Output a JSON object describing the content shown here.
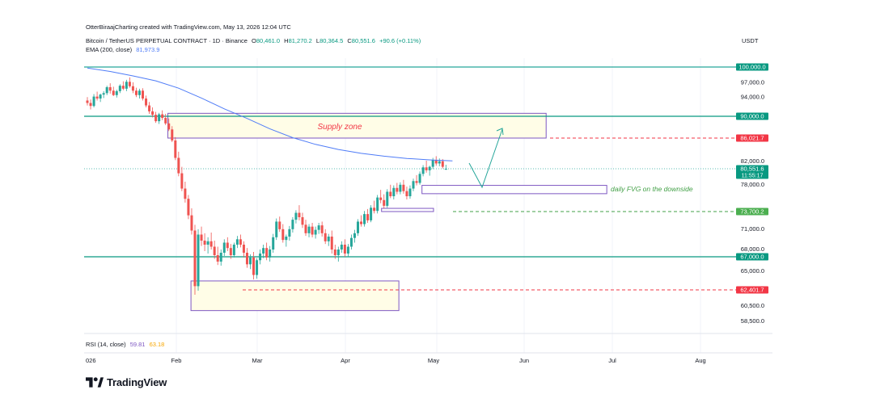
{
  "credit": "OtterBiraajCharting created with TradingView.com, May 13, 2026 12:04 UTC",
  "symbol": {
    "name": "Bitcoin / TetherUS PERPETUAL CONTRACT · 1D · Binance",
    "o_label": "O",
    "o": "80,461.0",
    "h_label": "H",
    "h": "81,270.2",
    "l_label": "L",
    "l": "80,364.5",
    "c_label": "C",
    "c": "80,551.6",
    "change": "+90.6 (+0.11%)"
  },
  "currency": "USDT",
  "ema": {
    "label": "EMA (200, close)",
    "value": "81,973.9",
    "color": "#4f7cf7"
  },
  "rsi": {
    "label": "RSI (14, close)",
    "value1": "59.81",
    "value2": "63.18"
  },
  "logo_text": "TradingView",
  "colors": {
    "up": "#26a69a",
    "down": "#ef5350",
    "teal": "#089981",
    "purple": "#7e57c2",
    "red": "#f23645",
    "green_text": "#43a047"
  },
  "chart_data": {
    "type": "candlestick",
    "timeframe": "1D",
    "y_axis_ticks": [
      97000,
      94000,
      82000,
      78000,
      71000,
      68000,
      65000,
      60500,
      58500
    ],
    "y_range": [
      55000,
      102500
    ],
    "x_axis_labels": [
      "026",
      "Feb",
      "Mar",
      "Apr",
      "May",
      "Jun",
      "Jul",
      "Aug"
    ],
    "price_labels": [
      {
        "value": "100,000.0",
        "price": 100000,
        "style": "teal"
      },
      {
        "value": "90,000.0",
        "price": 90000,
        "style": "teal"
      },
      {
        "value": "86,021.7",
        "price": 86021.7,
        "style": "red"
      },
      {
        "value": "80,551.6",
        "sub": "11:55:17",
        "price": 80551.6,
        "style": "teal"
      },
      {
        "value": "73,700.2",
        "price": 73700.2,
        "style": "green"
      },
      {
        "value": "67,000.0",
        "price": 67000,
        "style": "teal"
      },
      {
        "value": "62,401.7",
        "price": 62401.7,
        "style": "red"
      }
    ],
    "horizontal_lines": [
      {
        "price": 100000,
        "style": "solid",
        "color": "#26a69a"
      },
      {
        "price": 90000,
        "style": "solid",
        "color": "#089981"
      },
      {
        "price": 67000,
        "style": "solid",
        "color": "#089981"
      },
      {
        "price": 86021.7,
        "style": "dashed",
        "color": "#f23645"
      },
      {
        "price": 73700.2,
        "style": "dashed",
        "color": "#43a047"
      },
      {
        "price": 62401.7,
        "style": "dashed",
        "color": "#f23645"
      }
    ],
    "annotations": [
      {
        "text": "Supply zone",
        "color": "#f23645"
      },
      {
        "text": "daily FVG on the downside",
        "color": "#43a047"
      }
    ],
    "zones": [
      {
        "name": "Supply zone",
        "top": 90600,
        "bottom": 86021.7,
        "start": "2026-01-30",
        "end": "2026-06-10"
      },
      {
        "name": "daily FVG on the downside",
        "top": 77800,
        "bottom": 76500,
        "start": "2026-04-28",
        "end": "2026-07-01"
      },
      {
        "name": "FVG 2",
        "top": 74200,
        "bottom": 73700,
        "start": "2026-04-14",
        "end": "2026-05-02"
      },
      {
        "name": "Demand box",
        "top": 63600,
        "bottom": 59800,
        "start": "2026-02-07",
        "end": "2026-04-20"
      }
    ],
    "candles": [
      [
        93200,
        93900,
        92200,
        92700
      ],
      [
        92700,
        93400,
        91400,
        92100
      ],
      [
        92100,
        94500,
        91800,
        94000
      ],
      [
        94000,
        95000,
        93200,
        93600
      ],
      [
        93600,
        94600,
        92900,
        94400
      ],
      [
        94400,
        95100,
        93700,
        94700
      ],
      [
        94700,
        96200,
        94300,
        95900
      ],
      [
        95900,
        96700,
        94600,
        95200
      ],
      [
        95200,
        96000,
        94100,
        94300
      ],
      [
        94300,
        95400,
        93800,
        95100
      ],
      [
        95100,
        96500,
        94700,
        96200
      ],
      [
        96200,
        97100,
        95300,
        95600
      ],
      [
        95600,
        97400,
        95100,
        97000
      ],
      [
        97000,
        97900,
        95800,
        96100
      ],
      [
        96100,
        96900,
        94700,
        95200
      ],
      [
        95200,
        95800,
        93900,
        94300
      ],
      [
        94300,
        95600,
        93600,
        95200
      ],
      [
        95200,
        95700,
        93200,
        93600
      ],
      [
        93600,
        94200,
        91800,
        92200
      ],
      [
        92200,
        92900,
        90500,
        91000
      ],
      [
        91000,
        91800,
        89800,
        90300
      ],
      [
        90300,
        90900,
        88800,
        89100
      ],
      [
        89100,
        90700,
        88600,
        90400
      ],
      [
        90400,
        91200,
        89300,
        89700
      ],
      [
        89700,
        90500,
        88400,
        88700
      ],
      [
        88700,
        89600,
        87300,
        87600
      ],
      [
        87600,
        88200,
        85300,
        85600
      ],
      [
        85600,
        86200,
        82100,
        82500
      ],
      [
        82500,
        83600,
        79300,
        79800
      ],
      [
        79800,
        80900,
        76900,
        77300
      ],
      [
        77300,
        78400,
        75100,
        75700
      ],
      [
        75700,
        76300,
        72500,
        73100
      ],
      [
        73100,
        74200,
        70100,
        70700
      ],
      [
        70700,
        71600,
        61800,
        62900
      ],
      [
        62900,
        70900,
        62300,
        70100
      ],
      [
        70100,
        71300,
        68400,
        69200
      ],
      [
        69200,
        70300,
        67700,
        68600
      ],
      [
        68600,
        69700,
        67400,
        69100
      ],
      [
        69100,
        70400,
        67900,
        68300
      ],
      [
        68300,
        69200,
        66700,
        67200
      ],
      [
        67200,
        68300,
        65800,
        66300
      ],
      [
        66300,
        67900,
        65700,
        67500
      ],
      [
        67500,
        69400,
        67100,
        68900
      ],
      [
        68900,
        69700,
        67700,
        68100
      ],
      [
        68100,
        68700,
        66700,
        67200
      ],
      [
        67200,
        68900,
        66900,
        68600
      ],
      [
        68600,
        69900,
        68100,
        69400
      ],
      [
        69400,
        70100,
        68200,
        68600
      ],
      [
        68600,
        69100,
        66900,
        67500
      ],
      [
        67500,
        68100,
        65400,
        65900
      ],
      [
        65900,
        67300,
        65200,
        66900
      ],
      [
        66900,
        67600,
        63800,
        64400
      ],
      [
        64400,
        66800,
        63900,
        66500
      ],
      [
        66500,
        67900,
        65900,
        67400
      ],
      [
        67400,
        68600,
        66800,
        68100
      ],
      [
        68100,
        68900,
        66500,
        66900
      ],
      [
        66900,
        68400,
        66300,
        67900
      ],
      [
        67900,
        70200,
        67500,
        69700
      ],
      [
        69700,
        72600,
        69300,
        72100
      ],
      [
        72100,
        72900,
        70500,
        70900
      ],
      [
        70900,
        71700,
        68900,
        69300
      ],
      [
        69300,
        70100,
        68300,
        69800
      ],
      [
        69800,
        71400,
        69200,
        70900
      ],
      [
        70900,
        72800,
        70400,
        72400
      ],
      [
        72400,
        73900,
        71800,
        73500
      ],
      [
        73500,
        74700,
        72300,
        72800
      ],
      [
        72800,
        73500,
        71100,
        71600
      ],
      [
        71600,
        72400,
        69900,
        70300
      ],
      [
        70300,
        71700,
        69700,
        71300
      ],
      [
        71300,
        71900,
        69700,
        70100
      ],
      [
        70100,
        71300,
        69500,
        70800
      ],
      [
        70800,
        71900,
        70200,
        71500
      ],
      [
        71500,
        72100,
        69800,
        70300
      ],
      [
        70300,
        70900,
        68700,
        69100
      ],
      [
        69100,
        70200,
        68400,
        69800
      ],
      [
        69800,
        70700,
        67400,
        67900
      ],
      [
        67900,
        68600,
        66700,
        67200
      ],
      [
        67200,
        68300,
        66300,
        67900
      ],
      [
        67900,
        69100,
        67500,
        68600
      ],
      [
        68600,
        69400,
        67000,
        67400
      ],
      [
        67400,
        68700,
        67000,
        68300
      ],
      [
        68300,
        70100,
        67900,
        69600
      ],
      [
        69600,
        70800,
        68900,
        70300
      ],
      [
        70300,
        72500,
        69900,
        72100
      ],
      [
        72100,
        73100,
        71300,
        71700
      ],
      [
        71700,
        73800,
        71300,
        73300
      ],
      [
        73300,
        74100,
        71900,
        72300
      ],
      [
        72300,
        74700,
        72000,
        74300
      ],
      [
        74300,
        75400,
        73400,
        73800
      ],
      [
        73800,
        76300,
        73400,
        75900
      ],
      [
        75900,
        77100,
        75000,
        75500
      ],
      [
        75500,
        76400,
        74200,
        74600
      ],
      [
        74600,
        77200,
        74300,
        76800
      ],
      [
        76800,
        77900,
        75800,
        76100
      ],
      [
        76100,
        77800,
        75600,
        77400
      ],
      [
        77400,
        78200,
        76400,
        76800
      ],
      [
        76800,
        78300,
        76400,
        77900
      ],
      [
        77900,
        78700,
        76500,
        76900
      ],
      [
        76900,
        77600,
        75600,
        76100
      ],
      [
        76100,
        77800,
        75700,
        77300
      ],
      [
        77300,
        78900,
        76900,
        78500
      ],
      [
        78500,
        79500,
        77800,
        78200
      ],
      [
        78200,
        80100,
        77900,
        79700
      ],
      [
        79700,
        81200,
        79300,
        80800
      ],
      [
        80800,
        82000,
        79900,
        80300
      ],
      [
        80300,
        81100,
        79400,
        80900
      ],
      [
        80900,
        82500,
        80500,
        82100
      ],
      [
        82100,
        82800,
        81100,
        81500
      ],
      [
        81500,
        82400,
        81000,
        81900
      ],
      [
        81900,
        82300,
        80600,
        80900
      ],
      [
        80461,
        81270.2,
        80364.5,
        80551.6
      ]
    ],
    "ema_200": [
      [
        0,
        99800
      ],
      [
        10,
        99100
      ],
      [
        20,
        98200
      ],
      [
        30,
        97200
      ],
      [
        40,
        95700
      ],
      [
        50,
        93700
      ],
      [
        60,
        91500
      ],
      [
        70,
        89600
      ],
      [
        80,
        87700
      ],
      [
        90,
        86100
      ],
      [
        100,
        84900
      ],
      [
        110,
        84000
      ],
      [
        120,
        83300
      ],
      [
        130,
        82800
      ],
      [
        140,
        82400
      ],
      [
        150,
        82150
      ],
      [
        160,
        81974
      ]
    ],
    "projection": [
      [
        80700,
        82000
      ],
      [
        78500,
        77000
      ],
      [
        86500,
        88000
      ]
    ]
  }
}
